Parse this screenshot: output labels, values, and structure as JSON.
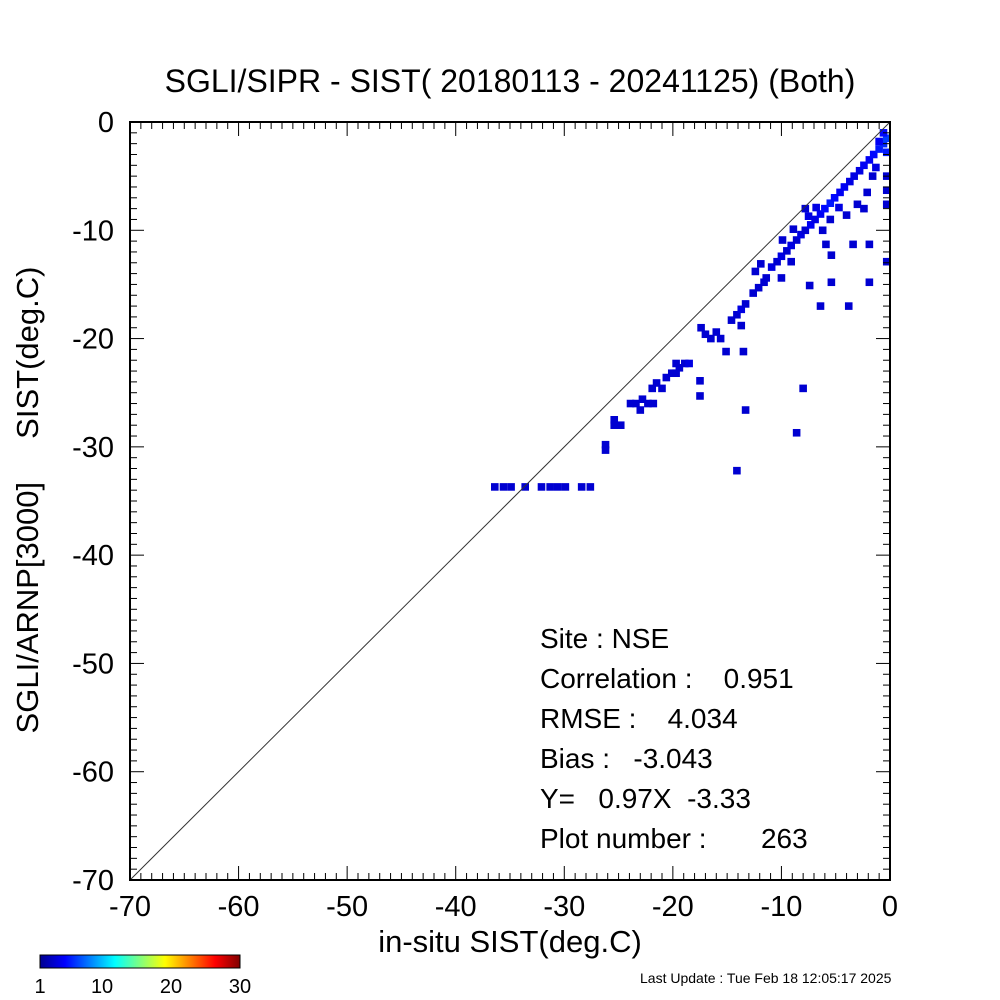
{
  "footer": {
    "last_update": "Last Update : Tue Feb 18 12:05:17 2025"
  },
  "colors": {
    "axis": "#000000",
    "background": "#ffffff",
    "one_to_one_line": "#333333",
    "dominant_cell": "#00008b"
  },
  "chart_data": {
    "type": "heatmap",
    "title": "SGLI/SIPR - SIST( 20180113 - 20241125) (Both)",
    "xlabel": "in-situ SIST(deg.C)",
    "ylabel": "SGLI/ARNP[3000]     SIST(deg.C)",
    "xlim": [
      -70,
      0
    ],
    "ylim": [
      -70,
      0
    ],
    "x_ticks": [
      -70,
      -60,
      -50,
      -40,
      -30,
      -20,
      -10,
      0
    ],
    "y_ticks": [
      -70,
      -60,
      -50,
      -40,
      -30,
      -20,
      -10,
      0
    ],
    "x_tick_labels": [
      "-70",
      "-60",
      "-50",
      "-40",
      "-30",
      "-20",
      "-10",
      "0"
    ],
    "y_tick_labels": [
      "-70",
      "-60",
      "-50",
      "-40",
      "-30",
      "-20",
      "-10",
      "0"
    ],
    "grid": false,
    "one_to_one_line": true,
    "colorbar": {
      "range": [
        1,
        30
      ],
      "tick_labels": [
        "1",
        "10",
        "20",
        "30"
      ],
      "colormap": "jet",
      "placement": "bottom-left"
    },
    "stats": [
      "Site : NSE",
      "Correlation :    0.951",
      "RMSE :    4.034",
      "Bias :   -3.043",
      "Y=   0.97X  -3.33",
      "Plot number :       263"
    ],
    "points": [
      {
        "x": -36.4,
        "y": -33.7,
        "c": 1
      },
      {
        "x": -35.6,
        "y": -33.7,
        "c": 1
      },
      {
        "x": -34.9,
        "y": -33.7,
        "c": 1
      },
      {
        "x": -33.6,
        "y": -33.7,
        "c": 1
      },
      {
        "x": -32.1,
        "y": -33.7,
        "c": 1
      },
      {
        "x": -31.3,
        "y": -33.7,
        "c": 1
      },
      {
        "x": -30.6,
        "y": -33.7,
        "c": 1
      },
      {
        "x": -29.9,
        "y": -33.7,
        "c": 1
      },
      {
        "x": -28.4,
        "y": -33.7,
        "c": 1
      },
      {
        "x": -27.6,
        "y": -33.7,
        "c": 1
      },
      {
        "x": -26.2,
        "y": -29.8,
        "c": 1
      },
      {
        "x": -26.2,
        "y": -30.3,
        "c": 1
      },
      {
        "x": -25.4,
        "y": -27.5,
        "c": 1
      },
      {
        "x": -25.4,
        "y": -28.0,
        "c": 1
      },
      {
        "x": -24.8,
        "y": -28.0,
        "c": 1
      },
      {
        "x": -23.9,
        "y": -26.0,
        "c": 1
      },
      {
        "x": -23.4,
        "y": -26.0,
        "c": 1
      },
      {
        "x": -23.0,
        "y": -26.6,
        "c": 1
      },
      {
        "x": -22.8,
        "y": -25.6,
        "c": 1
      },
      {
        "x": -22.3,
        "y": -26.0,
        "c": 1
      },
      {
        "x": -21.8,
        "y": -26.0,
        "c": 1
      },
      {
        "x": -21.9,
        "y": -24.6,
        "c": 1
      },
      {
        "x": -21.5,
        "y": -24.1,
        "c": 1
      },
      {
        "x": -21.0,
        "y": -24.6,
        "c": 1
      },
      {
        "x": -20.6,
        "y": -23.6,
        "c": 1
      },
      {
        "x": -20.1,
        "y": -23.2,
        "c": 1
      },
      {
        "x": -19.7,
        "y": -23.2,
        "c": 1
      },
      {
        "x": -19.4,
        "y": -22.7,
        "c": 1
      },
      {
        "x": -18.9,
        "y": -22.3,
        "c": 1
      },
      {
        "x": -18.5,
        "y": -22.3,
        "c": 2
      },
      {
        "x": -19.7,
        "y": -22.3,
        "c": 1
      },
      {
        "x": -17.4,
        "y": -19.0,
        "c": 1
      },
      {
        "x": -17.0,
        "y": -19.6,
        "c": 1
      },
      {
        "x": -16.5,
        "y": -20.0,
        "c": 1
      },
      {
        "x": -16.0,
        "y": -19.4,
        "c": 1
      },
      {
        "x": -15.6,
        "y": -20.0,
        "c": 1
      },
      {
        "x": -15.1,
        "y": -21.2,
        "c": 1
      },
      {
        "x": -14.6,
        "y": -18.3,
        "c": 1
      },
      {
        "x": -14.1,
        "y": -17.8,
        "c": 1
      },
      {
        "x": -13.7,
        "y": -17.3,
        "c": 2
      },
      {
        "x": -13.3,
        "y": -16.8,
        "c": 1
      },
      {
        "x": -13.7,
        "y": -18.8,
        "c": 1
      },
      {
        "x": -13.5,
        "y": -21.2,
        "c": 1
      },
      {
        "x": -13.3,
        "y": -26.6,
        "c": 1
      },
      {
        "x": -14.1,
        "y": -32.2,
        "c": 1
      },
      {
        "x": -17.5,
        "y": -23.9,
        "c": 1
      },
      {
        "x": -17.5,
        "y": -25.3,
        "c": 1
      },
      {
        "x": -12.6,
        "y": -15.8,
        "c": 1
      },
      {
        "x": -12.1,
        "y": -15.3,
        "c": 1
      },
      {
        "x": -11.6,
        "y": -14.8,
        "c": 1
      },
      {
        "x": -11.4,
        "y": -14.4,
        "c": 1
      },
      {
        "x": -10.9,
        "y": -13.4,
        "c": 2
      },
      {
        "x": -10.4,
        "y": -12.9,
        "c": 1
      },
      {
        "x": -10.0,
        "y": -12.4,
        "c": 2
      },
      {
        "x": -9.5,
        "y": -11.9,
        "c": 1
      },
      {
        "x": -9.1,
        "y": -11.4,
        "c": 2
      },
      {
        "x": -9.1,
        "y": -12.9,
        "c": 1
      },
      {
        "x": -10.0,
        "y": -14.4,
        "c": 1
      },
      {
        "x": -8.6,
        "y": -10.9,
        "c": 1
      },
      {
        "x": -8.2,
        "y": -10.4,
        "c": 2
      },
      {
        "x": -7.8,
        "y": -10.0,
        "c": 1
      },
      {
        "x": -7.8,
        "y": -8.0,
        "c": 1
      },
      {
        "x": -7.3,
        "y": -9.5,
        "c": 3
      },
      {
        "x": -6.9,
        "y": -9.0,
        "c": 2
      },
      {
        "x": -6.4,
        "y": -8.5,
        "c": 3
      },
      {
        "x": -6.0,
        "y": -8.0,
        "c": 4
      },
      {
        "x": -5.5,
        "y": -7.5,
        "c": 5
      },
      {
        "x": -5.1,
        "y": -7.0,
        "c": 4
      },
      {
        "x": -4.6,
        "y": -6.5,
        "c": 3
      },
      {
        "x": -4.2,
        "y": -6.0,
        "c": 3
      },
      {
        "x": -3.7,
        "y": -5.5,
        "c": 2
      },
      {
        "x": -3.3,
        "y": -5.0,
        "c": 2
      },
      {
        "x": -2.8,
        "y": -4.5,
        "c": 2
      },
      {
        "x": -2.4,
        "y": -4.0,
        "c": 3
      },
      {
        "x": -1.9,
        "y": -3.5,
        "c": 3
      },
      {
        "x": -1.5,
        "y": -3.0,
        "c": 4
      },
      {
        "x": -1.0,
        "y": -2.5,
        "c": 5
      },
      {
        "x": -0.6,
        "y": -2.0,
        "c": 6
      },
      {
        "x": -0.3,
        "y": -1.5,
        "c": 7
      },
      {
        "x": -0.3,
        "y": -2.8,
        "c": 5
      },
      {
        "x": -0.3,
        "y": -5.0,
        "c": 1
      },
      {
        "x": -0.3,
        "y": -6.3,
        "c": 1
      },
      {
        "x": -0.3,
        "y": -7.6,
        "c": 1
      },
      {
        "x": -0.3,
        "y": -12.9,
        "c": 1
      },
      {
        "x": -0.6,
        "y": -1.0,
        "c": 4
      },
      {
        "x": -1.0,
        "y": -1.8,
        "c": 3
      },
      {
        "x": -6.8,
        "y": -7.9,
        "c": 2
      },
      {
        "x": -7.5,
        "y": -8.7,
        "c": 2
      },
      {
        "x": -6.2,
        "y": -10.0,
        "c": 1
      },
      {
        "x": -5.5,
        "y": -9.0,
        "c": 1
      },
      {
        "x": -4.7,
        "y": -7.9,
        "c": 2
      },
      {
        "x": -4.0,
        "y": -8.6,
        "c": 1
      },
      {
        "x": -3.0,
        "y": -7.6,
        "c": 1
      },
      {
        "x": -2.4,
        "y": -8.0,
        "c": 1
      },
      {
        "x": -2.1,
        "y": -6.5,
        "c": 1
      },
      {
        "x": -1.6,
        "y": -5.0,
        "c": 1
      },
      {
        "x": -1.3,
        "y": -4.2,
        "c": 2
      },
      {
        "x": -3.4,
        "y": -11.3,
        "c": 1
      },
      {
        "x": -1.9,
        "y": -11.3,
        "c": 1
      },
      {
        "x": -5.9,
        "y": -11.3,
        "c": 1
      },
      {
        "x": -5.4,
        "y": -12.3,
        "c": 1
      },
      {
        "x": -5.4,
        "y": -14.8,
        "c": 1
      },
      {
        "x": -7.4,
        "y": -15.1,
        "c": 1
      },
      {
        "x": -6.4,
        "y": -17.0,
        "c": 1
      },
      {
        "x": -3.8,
        "y": -17.0,
        "c": 1
      },
      {
        "x": -1.9,
        "y": -14.8,
        "c": 1
      },
      {
        "x": -8.0,
        "y": -24.6,
        "c": 1
      },
      {
        "x": -8.6,
        "y": -28.7,
        "c": 1
      },
      {
        "x": -12.4,
        "y": -13.8,
        "c": 1
      },
      {
        "x": -11.9,
        "y": -13.1,
        "c": 1
      },
      {
        "x": -9.9,
        "y": -10.9,
        "c": 1
      },
      {
        "x": -8.9,
        "y": -9.9,
        "c": 1
      }
    ]
  }
}
